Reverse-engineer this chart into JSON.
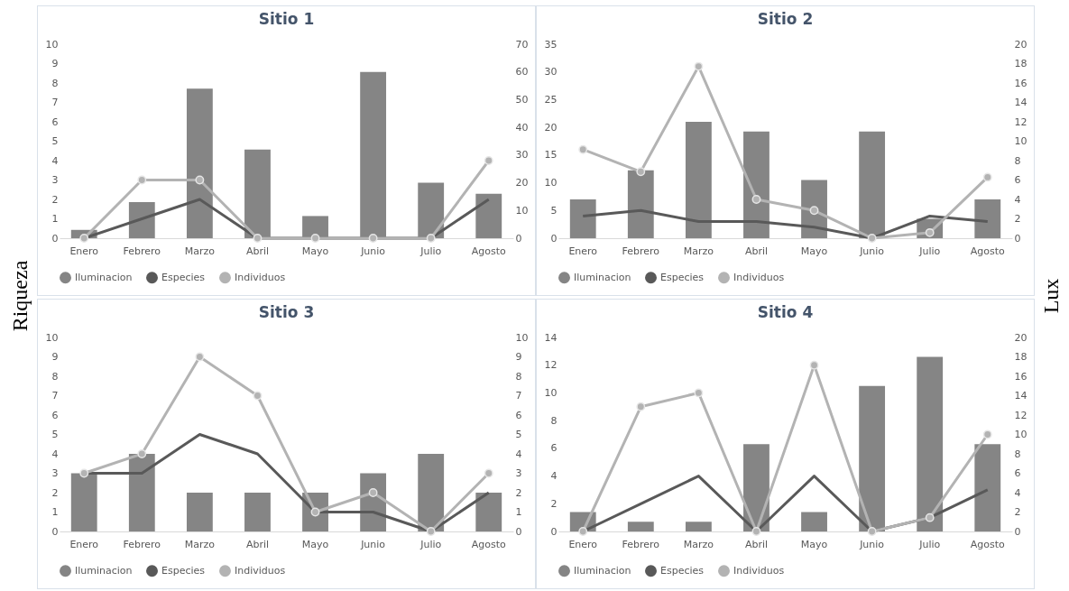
{
  "chart_data": [
    {
      "type": "bar",
      "title": "Sitio 1",
      "ylabel": "Riqueza",
      "categories": [
        "Enero",
        "Febrero",
        "Marzo",
        "Abril",
        "Mayo",
        "Junio",
        "Julio",
        "Agosto"
      ],
      "ylim": [
        0,
        10
      ],
      "yticks": [
        0,
        1,
        2,
        3,
        4,
        5,
        6,
        7,
        8,
        9,
        10
      ],
      "y2lim": [
        0,
        70
      ],
      "y2ticks": [
        0,
        10,
        20,
        30,
        40,
        50,
        60,
        70
      ],
      "legend": "bottom",
      "grid": false,
      "series": [
        {
          "name": "Iluminacion",
          "axis": "y2",
          "color": "#858585",
          "values": [
            3,
            13,
            54,
            32,
            8,
            60,
            20,
            16
          ]
        },
        {
          "name": "Especies",
          "type": "line",
          "color": "#595959",
          "marker": "none",
          "values": [
            0,
            1,
            2,
            0,
            0,
            0,
            0,
            2
          ]
        },
        {
          "name": "Individuos",
          "type": "line",
          "color": "#b3b3b3",
          "marker": "circle",
          "values": [
            0,
            3,
            3,
            0,
            0,
            0,
            0,
            4
          ]
        }
      ]
    },
    {
      "type": "bar",
      "title": "Sitio 2",
      "y2label": "Lux",
      "categories": [
        "Enero",
        "Febrero",
        "Marzo",
        "Abril",
        "Mayo",
        "Junio",
        "Julio",
        "Agosto"
      ],
      "ylim": [
        0,
        35
      ],
      "yticks": [
        0,
        5,
        10,
        15,
        20,
        25,
        30,
        35
      ],
      "y2lim": [
        0,
        20
      ],
      "y2ticks": [
        0,
        2,
        4,
        6,
        8,
        10,
        12,
        14,
        16,
        18,
        20
      ],
      "legend": "bottom",
      "grid": false,
      "series": [
        {
          "name": "Iluminacion",
          "axis": "y2",
          "color": "#858585",
          "values": [
            4,
            7,
            12,
            11,
            6,
            11,
            2,
            4
          ]
        },
        {
          "name": "Especies",
          "type": "line",
          "color": "#595959",
          "marker": "none",
          "values": [
            4,
            5,
            3,
            3,
            2,
            0,
            4,
            3
          ]
        },
        {
          "name": "Individuos",
          "type": "line",
          "color": "#b3b3b3",
          "marker": "circle",
          "values": [
            16,
            12,
            31,
            7,
            5,
            0,
            1,
            11
          ]
        }
      ]
    },
    {
      "type": "bar",
      "title": "Sitio 3",
      "categories": [
        "Enero",
        "Febrero",
        "Marzo",
        "Abril",
        "Mayo",
        "Junio",
        "Julio",
        "Agosto"
      ],
      "ylim": [
        0,
        10
      ],
      "yticks": [
        0,
        1,
        2,
        3,
        4,
        5,
        6,
        7,
        8,
        9,
        10
      ],
      "y2lim": [
        0,
        10
      ],
      "y2ticks": [
        0,
        1,
        2,
        3,
        4,
        5,
        6,
        7,
        8,
        9,
        10
      ],
      "legend": "bottom",
      "grid": false,
      "series": [
        {
          "name": "Iluminacion",
          "axis": "y2",
          "color": "#858585",
          "values": [
            3,
            4,
            2,
            2,
            2,
            3,
            4,
            2
          ]
        },
        {
          "name": "Especies",
          "type": "line",
          "color": "#595959",
          "marker": "none",
          "values": [
            3,
            3,
            5,
            4,
            1,
            1,
            0,
            2
          ]
        },
        {
          "name": "Individuos",
          "type": "line",
          "color": "#b3b3b3",
          "marker": "circle",
          "values": [
            3,
            4,
            9,
            7,
            1,
            2,
            0,
            3
          ]
        }
      ]
    },
    {
      "type": "bar",
      "title": "Sitio 4",
      "categories": [
        "Enero",
        "Febrero",
        "Marzo",
        "Abril",
        "Mayo",
        "Junio",
        "Julio",
        "Agosto"
      ],
      "ylim": [
        0,
        14
      ],
      "yticks": [
        0,
        2,
        4,
        6,
        8,
        10,
        12,
        14
      ],
      "y2lim": [
        0,
        20
      ],
      "y2ticks": [
        0,
        2,
        4,
        6,
        8,
        10,
        12,
        14,
        16,
        18,
        20
      ],
      "legend": "bottom",
      "grid": false,
      "series": [
        {
          "name": "Iluminacion",
          "axis": "y2",
          "color": "#858585",
          "values": [
            2,
            1,
            1,
            9,
            2,
            15,
            18,
            9
          ]
        },
        {
          "name": "Especies",
          "type": "line",
          "color": "#595959",
          "marker": "none",
          "values": [
            0,
            2,
            4,
            0,
            4,
            0,
            1,
            3
          ]
        },
        {
          "name": "Individuos",
          "type": "line",
          "color": "#b3b3b3",
          "marker": "circle",
          "values": [
            0,
            9,
            10,
            0,
            12,
            0,
            1,
            7
          ]
        }
      ]
    }
  ]
}
